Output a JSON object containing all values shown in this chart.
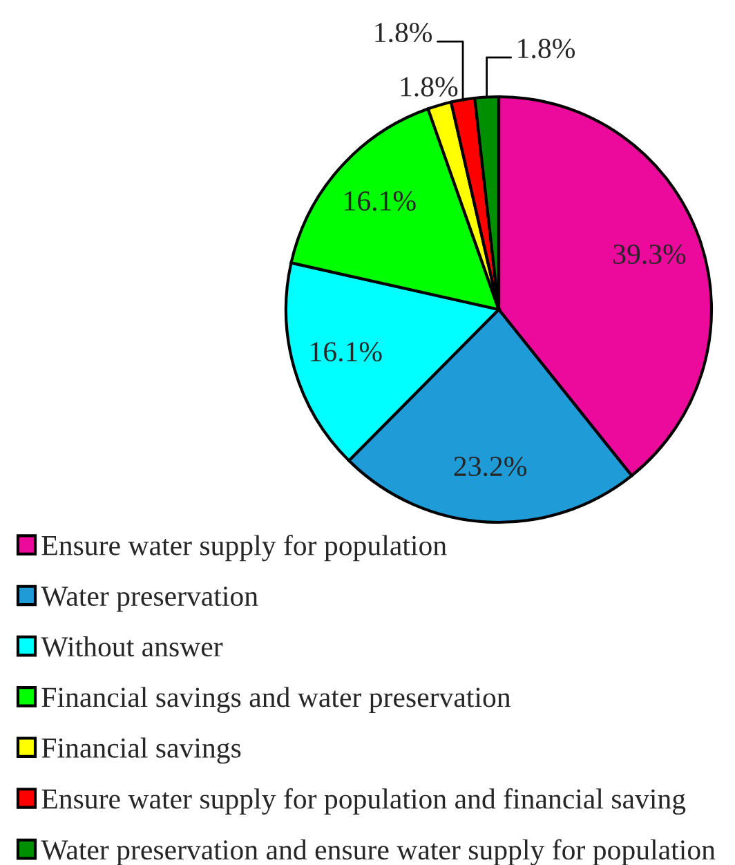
{
  "chart_data": {
    "type": "pie",
    "categories": [
      "Ensure water supply for population",
      "Water preservation",
      "Without answer",
      "Financial savings and water preservation",
      "Financial savings",
      "Ensure water supply for population and financial saving",
      "Water preservation and ensure water supply for population"
    ],
    "values": [
      39.3,
      23.2,
      16.1,
      16.1,
      1.8,
      1.8,
      1.8
    ],
    "colors": [
      "#ec0a9c",
      "#1f9bd7",
      "#00ffff",
      "#00ff00",
      "#ffff00",
      "#ff0000",
      "#008f00"
    ],
    "value_labels": [
      "39.3%",
      "23.2%",
      "16.1%",
      "16.1%",
      "1.8%",
      "1.8%",
      "1.8%"
    ],
    "legend": "bottom left"
  }
}
